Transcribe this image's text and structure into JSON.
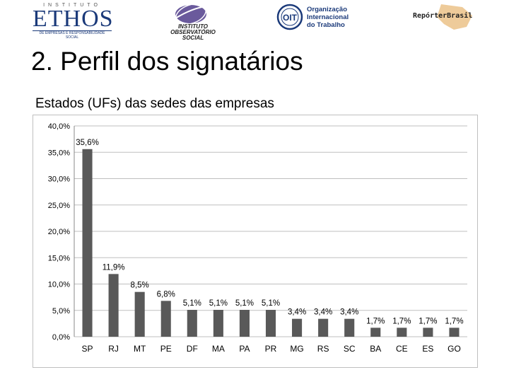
{
  "logos": {
    "ethos": {
      "top": "INSTITUTO",
      "name": "ETHOS",
      "tagline": "DE EMPRESAS E RESPONSABILIDADE SOCIAL"
    },
    "observatorio": {
      "text": "INSTITUTO OBSERVATÓRIO SOCIAL"
    },
    "oit": {
      "line1": "Organização",
      "line2": "Internacional",
      "line3": "do Trabalho"
    },
    "reporter": {
      "text": "RepórterBrasil"
    }
  },
  "slide": {
    "title": "2. Perfil dos signatários",
    "subtitle": "Estados (UFs) das sedes das empresas"
  },
  "colors": {
    "bar": "#595959",
    "grid": "#bfbfbf",
    "text": "#000000"
  },
  "chart_data": {
    "type": "bar",
    "title": "",
    "xlabel": "",
    "ylabel": "",
    "categories": [
      "SP",
      "RJ",
      "MT",
      "PE",
      "DF",
      "MA",
      "PA",
      "PR",
      "MG",
      "RS",
      "SC",
      "BA",
      "CE",
      "ES",
      "GO"
    ],
    "values": [
      35.6,
      11.9,
      8.5,
      6.8,
      5.1,
      5.1,
      5.1,
      5.1,
      3.4,
      3.4,
      3.4,
      1.7,
      1.7,
      1.7,
      1.7
    ],
    "data_labels": [
      "35,6%",
      "11,9%",
      "8,5%",
      "6,8%",
      "5,1%",
      "5,1%",
      "5,1%",
      "5,1%",
      "3,4%",
      "3,4%",
      "3,4%",
      "1,7%",
      "1,7%",
      "1,7%",
      "1,7%"
    ],
    "y_ticks": [
      0,
      5,
      10,
      15,
      20,
      25,
      30,
      35,
      40
    ],
    "y_tick_labels": [
      "0,0%",
      "5,0%",
      "10,0%",
      "15,0%",
      "20,0%",
      "25,0%",
      "30,0%",
      "35,0%",
      "40,0%"
    ],
    "ylim": [
      0,
      40
    ],
    "grid": true,
    "legend": "none"
  }
}
